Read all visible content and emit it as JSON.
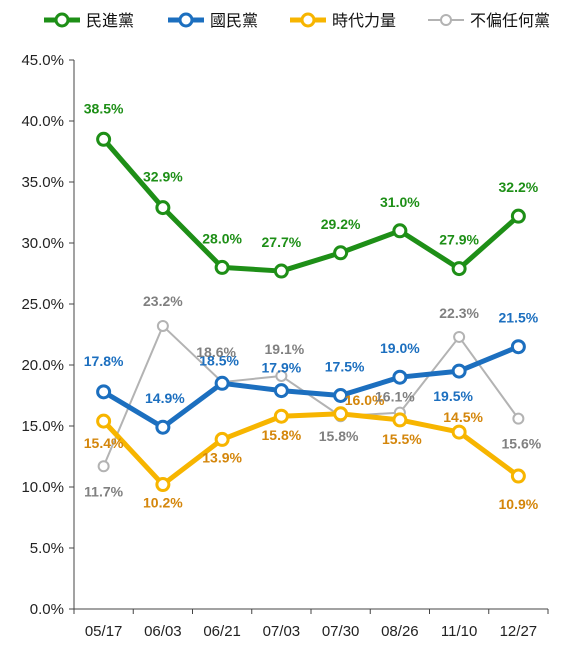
{
  "chart_data": {
    "type": "line",
    "categories": [
      "05/17",
      "06/03",
      "06/21",
      "07/03",
      "07/30",
      "08/26",
      "11/10",
      "12/27"
    ],
    "ylim": [
      0,
      45
    ],
    "yticks": [
      "0.0%",
      "5.0%",
      "10.0%",
      "15.0%",
      "20.0%",
      "25.0%",
      "30.0%",
      "35.0%",
      "40.0%",
      "45.0%"
    ],
    "grid": false,
    "legend_position": "top",
    "series": [
      {
        "name": "民進黨",
        "color": "#1e8f17",
        "values": [
          38.5,
          32.9,
          28.0,
          27.7,
          29.2,
          31.0,
          27.9,
          32.2
        ],
        "labels": [
          "38.5%",
          "32.9%",
          "28.0%",
          "27.7%",
          "29.2%",
          "31.0%",
          "27.9%",
          "32.2%"
        ]
      },
      {
        "name": "國民黨",
        "color": "#1c6fbf",
        "values": [
          17.8,
          14.9,
          18.5,
          17.9,
          17.5,
          19.0,
          19.5,
          21.5
        ],
        "labels": [
          "17.8%",
          "14.9%",
          "18.5%",
          "17.9%",
          "17.5%",
          "19.0%",
          "19.5%",
          "21.5%"
        ]
      },
      {
        "name": "時代力量",
        "color": "#f7b500",
        "label_color": "#d4860b",
        "values": [
          15.4,
          10.2,
          13.9,
          15.8,
          16.0,
          15.5,
          14.5,
          10.9
        ],
        "labels": [
          "15.4%",
          "10.2%",
          "13.9%",
          "15.8%",
          "16.0%",
          "15.5%",
          "14.5%",
          "10.9%"
        ]
      },
      {
        "name": "不偏任何黨",
        "color": "#b3b3b3",
        "label_color": "#808080",
        "values": [
          11.7,
          23.2,
          18.6,
          19.1,
          15.8,
          16.1,
          22.3,
          15.6
        ],
        "labels": [
          "11.7%",
          "23.2%",
          "18.6%",
          "19.1%",
          "15.8%",
          "16.1%",
          "22.3%",
          "15.6%"
        ]
      }
    ]
  }
}
